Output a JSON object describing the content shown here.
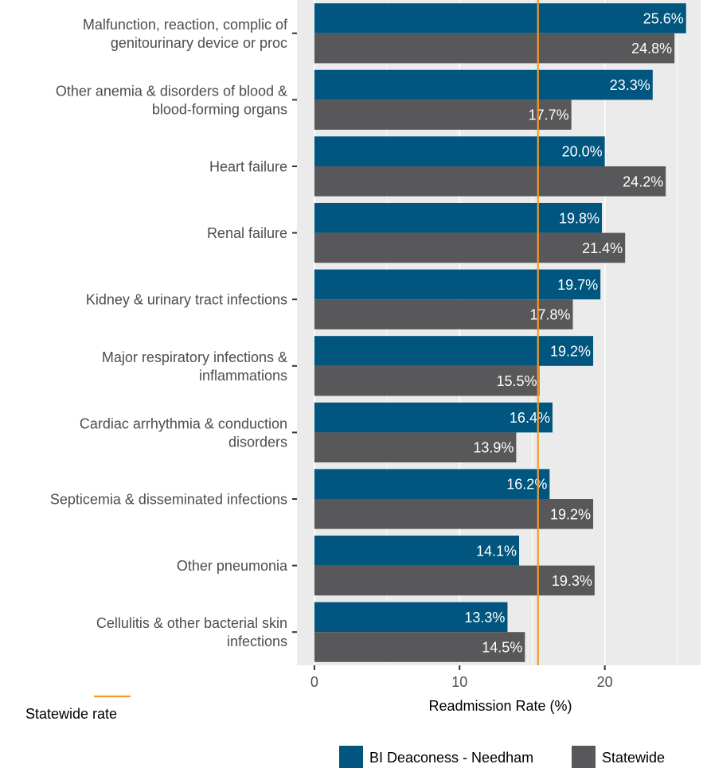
{
  "chart_data": {
    "type": "bar",
    "orientation": "horizontal",
    "categories": [
      [
        "Malfunction, reaction, complic of",
        "genitourinary device or proc"
      ],
      [
        "Other anemia & disorders of blood &",
        "blood-forming organs"
      ],
      [
        "Heart failure"
      ],
      [
        "Renal failure"
      ],
      [
        "Kidney & urinary tract infections"
      ],
      [
        "Major respiratory infections &",
        "inflammations"
      ],
      [
        "Cardiac arrhythmia & conduction",
        "disorders"
      ],
      [
        "Septicemia & disseminated infections"
      ],
      [
        "Other pneumonia"
      ],
      [
        "Cellulitis & other bacterial skin",
        "infections"
      ]
    ],
    "series": [
      {
        "name": "BI Deaconess - Needham",
        "color": "#00567f",
        "values": [
          25.6,
          23.3,
          20.0,
          19.8,
          19.7,
          19.2,
          16.4,
          16.2,
          14.1,
          13.3
        ],
        "labels": [
          "25.6%",
          "23.3%",
          "20.0%",
          "19.8%",
          "19.7%",
          "19.2%",
          "16.4%",
          "16.2%",
          "14.1%",
          "13.3%"
        ]
      },
      {
        "name": "Statewide",
        "color": "#58585a",
        "values": [
          24.8,
          17.7,
          24.2,
          21.4,
          17.8,
          15.5,
          13.9,
          19.2,
          19.3,
          14.5
        ],
        "labels": [
          "24.8%",
          "17.7%",
          "24.2%",
          "21.4%",
          "17.8%",
          "15.5%",
          "13.9%",
          "19.2%",
          "19.3%",
          "14.5%"
        ]
      }
    ],
    "reference_line": {
      "name": "Statewide rate",
      "value": 15.4,
      "color": "#f39c28"
    },
    "xlabel": "Readmission Rate (%)",
    "xlim": [
      -1.2,
      26.6
    ],
    "xticks": [
      0,
      10,
      20
    ],
    "xtick_labels": [
      "0",
      "10",
      "20"
    ],
    "minor_gridlines": [
      5,
      15,
      25
    ],
    "grid": true,
    "panel_background": "#ebebeb",
    "legend_position": "bottom-right"
  }
}
